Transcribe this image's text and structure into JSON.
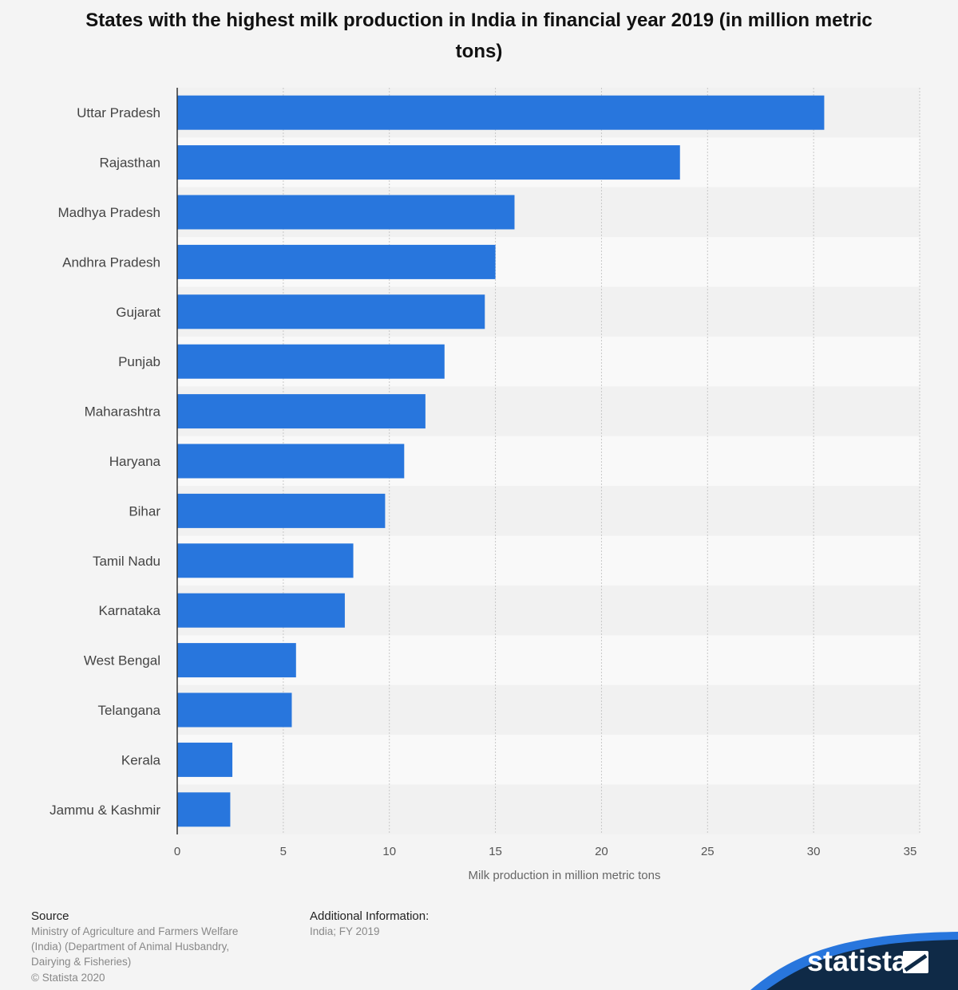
{
  "chart_data": {
    "type": "bar",
    "orientation": "horizontal",
    "title": "States with the highest milk production in India in financial year 2019 (in million metric tons)",
    "xlabel": "Milk production in million metric tons",
    "ylabel": "",
    "xlim": [
      0,
      35
    ],
    "ticks": [
      "0",
      "5",
      "10",
      "15",
      "20",
      "25",
      "30",
      "35"
    ],
    "grid": true,
    "categories": [
      "Uttar Pradesh",
      "Rajasthan",
      "Madhya Pradesh",
      "Andhra Pradesh",
      "Gujarat",
      "Punjab",
      "Maharashtra",
      "Haryana",
      "Bihar",
      "Tamil Nadu",
      "Karnataka",
      "West Bengal",
      "Telangana",
      "Kerala",
      "Jammu & Kashmir"
    ],
    "values": [
      30.5,
      23.7,
      15.9,
      15.0,
      14.5,
      12.6,
      11.7,
      10.7,
      9.8,
      8.3,
      7.9,
      5.6,
      5.4,
      2.6,
      2.5
    ],
    "bar_color": "#2876dd"
  },
  "footer": {
    "source_heading": "Source",
    "source_text": "Ministry of Agriculture and Farmers Welfare (India) (Department of Animal Husbandry, Dairying & Fisheries)",
    "copyright": "© Statista 2020",
    "addinfo_heading": "Additional Information:",
    "addinfo_text": "India; FY 2019"
  },
  "brand": {
    "name": "statista",
    "primary_color": "#0f2a47",
    "accent_color": "#2876dd"
  }
}
